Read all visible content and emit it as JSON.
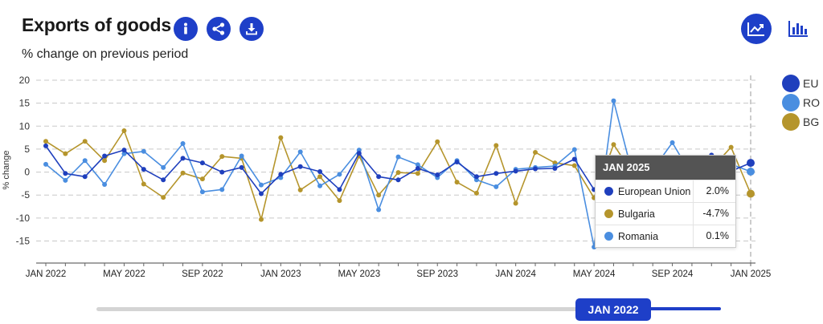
{
  "header": {
    "title": "Exports of goods",
    "subtitle": "% change on previous period"
  },
  "buttons": {
    "info_icon": "info-icon",
    "share_icon": "share-icon",
    "download_icon": "download-icon",
    "line_view_icon": "line-chart-icon",
    "bar_view_icon": "bar-chart-icon"
  },
  "colors": {
    "accent": "#1e3fc8",
    "eu": "#1f3fbd",
    "ro": "#4a8ee0",
    "bg": "#b5952c"
  },
  "legend": [
    {
      "label": "EU",
      "color": "#1f3fbd"
    },
    {
      "label": "RO",
      "color": "#4a8ee0"
    },
    {
      "label": "BG",
      "color": "#b5952c"
    }
  ],
  "tooltip": {
    "period": "JAN 2025",
    "rows": [
      {
        "name": "European Union",
        "value": "2.0%",
        "color": "#1f3fbd"
      },
      {
        "name": "Bulgaria",
        "value": "-4.7%",
        "color": "#b5952c"
      },
      {
        "name": "Romania",
        "value": "0.1%",
        "color": "#4a8ee0"
      }
    ]
  },
  "slider": {
    "handle_label": "JAN 2022"
  },
  "chart_data": {
    "type": "line",
    "title": "Exports of goods",
    "subtitle": "% change on previous period",
    "ylabel": "% change",
    "xlabel": "",
    "ylim": [
      -20,
      20
    ],
    "yticks": [
      20,
      15,
      10,
      5,
      0,
      -5,
      -10,
      -15
    ],
    "x_tick_labels": [
      "JAN 2022",
      "MAY 2022",
      "SEP 2022",
      "JAN 2023",
      "MAY 2023",
      "SEP 2023",
      "JAN 2024",
      "MAY 2024",
      "SEP 2024",
      "JAN 2025"
    ],
    "x_tick_indices": [
      0,
      4,
      8,
      12,
      16,
      20,
      24,
      28,
      32,
      36
    ],
    "categories": [
      "Jan 2022",
      "Feb 2022",
      "Mar 2022",
      "Apr 2022",
      "May 2022",
      "Jun 2022",
      "Jul 2022",
      "Aug 2022",
      "Sep 2022",
      "Oct 2022",
      "Nov 2022",
      "Dec 2022",
      "Jan 2023",
      "Feb 2023",
      "Mar 2023",
      "Apr 2023",
      "May 2023",
      "Jun 2023",
      "Jul 2023",
      "Aug 2023",
      "Sep 2023",
      "Oct 2023",
      "Nov 2023",
      "Dec 2023",
      "Jan 2024",
      "Feb 2024",
      "Mar 2024",
      "Apr 2024",
      "May 2024",
      "Jun 2024",
      "Jul 2024",
      "Aug 2024",
      "Sep 2024",
      "Oct 2024",
      "Nov 2024",
      "Dec 2024",
      "Jan 2025"
    ],
    "highlight_index": 36,
    "series": [
      {
        "name": "BG",
        "label": "Bulgaria",
        "color": "#b5952c",
        "values": [
          6.7,
          4.0,
          6.7,
          2.5,
          9.0,
          -2.6,
          -5.5,
          -0.2,
          -1.5,
          3.4,
          3.0,
          -10.3,
          7.5,
          -3.9,
          -1.0,
          -6.2,
          3.5,
          -5.0,
          -0.1,
          -0.3,
          6.6,
          -2.2,
          -4.6,
          5.8,
          -6.8,
          4.3,
          2.0,
          1.4,
          -5.6,
          6.0,
          -0.5,
          0.2,
          1.5,
          -0.5,
          0.8,
          5.4,
          -4.7
        ]
      },
      {
        "name": "RO",
        "label": "Romania",
        "color": "#4a8ee0",
        "values": [
          1.7,
          -1.8,
          2.5,
          -2.7,
          4.0,
          4.5,
          1.0,
          6.2,
          -4.3,
          -3.8,
          3.5,
          -2.8,
          -1.2,
          4.4,
          -3.0,
          -0.5,
          4.8,
          -8.2,
          3.3,
          1.6,
          -1.2,
          2.5,
          -1.7,
          -3.2,
          0.6,
          1.0,
          1.3,
          4.9,
          -16.3,
          15.5,
          -1.0,
          0.5,
          6.4,
          -0.8,
          1.0,
          1.7,
          0.1
        ]
      },
      {
        "name": "EU",
        "label": "European Union",
        "color": "#1f3fbd",
        "values": [
          5.7,
          -0.3,
          -1.0,
          3.5,
          4.8,
          0.6,
          -1.7,
          3.0,
          2.0,
          0.0,
          1.0,
          -4.7,
          -0.5,
          1.2,
          0.1,
          -3.8,
          4.1,
          -1.0,
          -1.7,
          0.8,
          -0.6,
          2.2,
          -1.0,
          -0.3,
          0.2,
          0.7,
          0.8,
          2.8,
          -3.8,
          1.0,
          0.0,
          0.5,
          0.8,
          -0.8,
          3.7,
          0.2,
          2.0
        ]
      }
    ]
  }
}
